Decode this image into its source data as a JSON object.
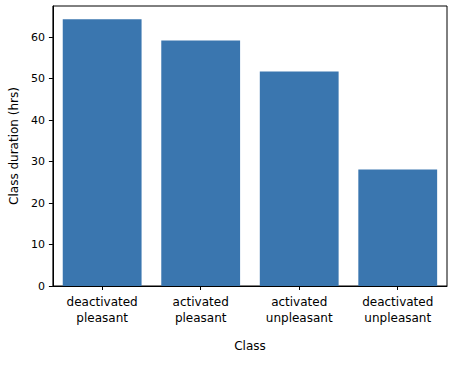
{
  "chart_data": {
    "type": "bar",
    "x_label": "Class",
    "y_label": "Class duration (hrs)",
    "categories": [
      "deactivated\npleasant",
      "activated\npleasant",
      "activated\nunpleasant",
      "deactivated\nunpleasant"
    ],
    "values": [
      64.3,
      59.2,
      51.7,
      28.1
    ],
    "color": "#3a76af",
    "ylim": [
      0,
      67.5
    ],
    "yticks": [
      0,
      10,
      20,
      30,
      40,
      50,
      60
    ],
    "grid": false
  }
}
